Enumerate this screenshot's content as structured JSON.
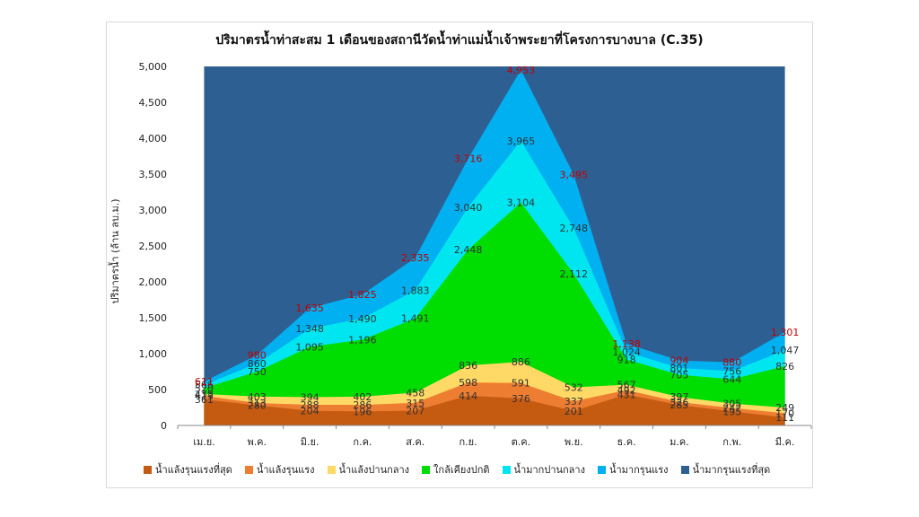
{
  "chart_data": {
    "type": "area",
    "stacked_boundaries": true,
    "title": "ปริมาตรน้ำท่าสะสม 1 เดือนของสถานีวัดน้ำท่าแม่น้ำเจ้าพระยาที่โครงการบางบาล (C.35)",
    "xlabel": "",
    "ylabel": "ปริมาตรน้ำ (ล้าน ลบ.ม.)",
    "ylim": [
      0,
      5000
    ],
    "yticks": [
      "0",
      "500",
      "1,000",
      "1,500",
      "2,000",
      "2,500",
      "3,000",
      "3,500",
      "4,000",
      "4,500",
      "5,000"
    ],
    "categories": [
      "เม.ย.",
      "พ.ค.",
      "มิ.ย.",
      "ก.ค.",
      "ส.ค.",
      "ก.ย.",
      "ต.ค.",
      "พ.ย.",
      "ธ.ค.",
      "ม.ค.",
      "ก.พ.",
      "มี.ค."
    ],
    "legend_position": "bottom",
    "series": [
      {
        "name": "น้ำแล้งรุนแรงที่สุด",
        "color": "#c55a11",
        "values": [
          361,
          280,
          204,
          196,
          207,
          414,
          376,
          201,
          431,
          285,
          195,
          111
        ]
      },
      {
        "name": "น้ำแล้งรุนแรง",
        "color": "#ed7d31",
        "values": [
          413,
          313,
          288,
          286,
          315,
          598,
          591,
          337,
          492,
          326,
          242,
          170
        ]
      },
      {
        "name": "น้ำแล้งปานกลาง",
        "color": "#ffd966",
        "values": [
          438,
          403,
          394,
          402,
          458,
          836,
          886,
          532,
          567,
          397,
          305,
          249
        ]
      },
      {
        "name": "ใกล้เคียงปกติ",
        "color": "#00dd00",
        "values": [
          520,
          750,
          1095,
          1196,
          1491,
          2448,
          3104,
          2112,
          918,
          705,
          644,
          826
        ]
      },
      {
        "name": "น้ำมากปานกลาง",
        "color": "#00e6f0",
        "values": [
          566,
          860,
          1348,
          1490,
          1883,
          3040,
          3965,
          2748,
          1024,
          801,
          756,
          1047
        ]
      },
      {
        "name": "น้ำมากรุนแรง",
        "color": "#00b0f0",
        "values": [
          611,
          980,
          1635,
          1825,
          2335,
          3716,
          4953,
          3495,
          1138,
          904,
          880,
          1301
        ]
      },
      {
        "name": "น้ำมากรุนแรงที่สุด",
        "color": "#2e5f93",
        "values": [
          5000,
          5000,
          5000,
          5000,
          5000,
          5000,
          5000,
          5000,
          5000,
          5000,
          5000,
          5000
        ]
      }
    ],
    "data_labels": [
      [
        "361",
        "280",
        "204",
        "196",
        "207",
        "414",
        "376",
        "201",
        "431",
        "285",
        "195",
        "111"
      ],
      [
        "413",
        "313",
        "288",
        "286",
        "315",
        "598",
        "591",
        "337",
        "492",
        "326",
        "242",
        "170"
      ],
      [
        "438",
        "403",
        "394",
        "402",
        "458",
        "836",
        "886",
        "532",
        "567",
        "397",
        "305",
        "249"
      ],
      [
        "520",
        "750",
        "1,095",
        "1,196",
        "1,491",
        "2,448",
        "3,104",
        "2,112",
        "918",
        "705",
        "644",
        "826"
      ],
      [
        "566",
        "860",
        "1,348",
        "1,490",
        "1,883",
        "3,040",
        "3,965",
        "2,748",
        "1,024",
        "801",
        "756",
        "1,047"
      ],
      [
        "611",
        "980",
        "1,635",
        "1,825",
        "2,335",
        "3,716",
        "4,953",
        "3,495",
        "1,138",
        "904",
        "880",
        "1,301"
      ]
    ],
    "label_colors": [
      "#333333",
      "#333333",
      "#333333",
      "#333333",
      "#333333",
      "#c00000"
    ]
  }
}
